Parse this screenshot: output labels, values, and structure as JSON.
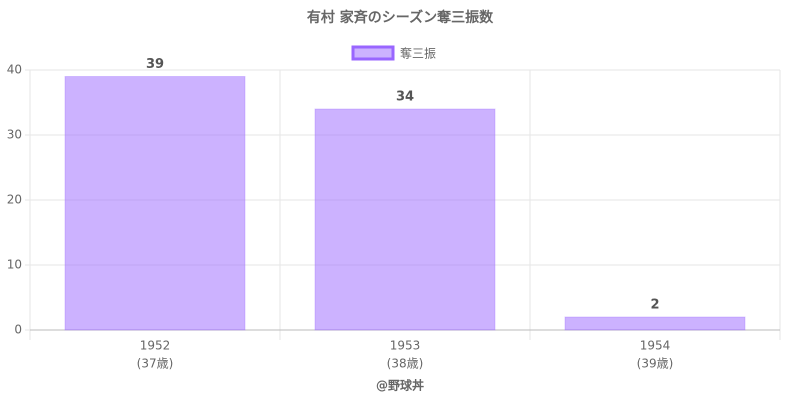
{
  "chart_data": {
    "type": "bar",
    "title": "有村 家斉のシーズン奪三振数",
    "categories": [
      "1952",
      "1953",
      "1954"
    ],
    "category_notes": [
      "(37歳)",
      "(38歳)",
      "(39歳)"
    ],
    "series": [
      {
        "name": "奪三振",
        "color": "#9966ff",
        "values": [
          39,
          34,
          2
        ]
      }
    ],
    "ylim": [
      0,
      40
    ],
    "yticks": [
      0,
      10,
      20,
      30,
      40
    ],
    "grid": true,
    "legend": "top",
    "footer": "@野球丼"
  }
}
